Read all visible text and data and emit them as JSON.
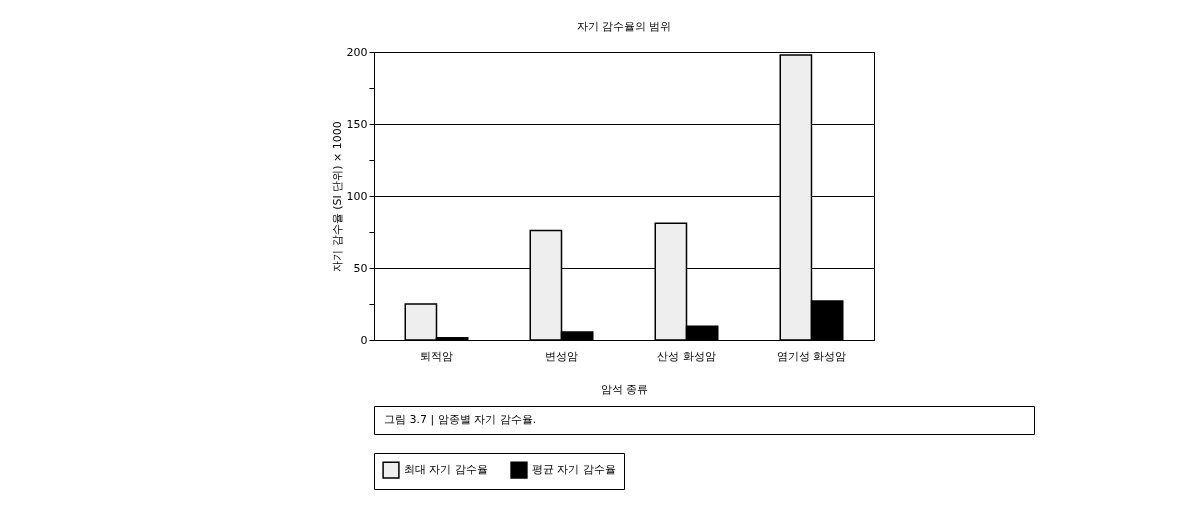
{
  "chart_data": {
    "type": "bar",
    "title": "자기 감수율의 범위",
    "xlabel": "암석 종류",
    "ylabel": "자기 감수율 (SI 단위) × 1000",
    "categories": [
      "퇴적암",
      "변성암",
      "산성 화성암",
      "염기성 화성암"
    ],
    "series": [
      {
        "name": "최대 자기 감수율",
        "color": "#eeeeee",
        "values": [
          25,
          76,
          81,
          198
        ]
      },
      {
        "name": "평균 자기 감수율",
        "color": "#000000",
        "values": [
          1.5,
          5.5,
          9.5,
          27
        ]
      }
    ],
    "ylim": [
      0,
      200
    ],
    "yticks": [
      0,
      {
        "value": 25,
        "label": null
      },
      50,
      {
        "value": 75,
        "label": null
      },
      100,
      {
        "value": 125,
        "label": null
      },
      150,
      {
        "value": 175,
        "label": null
      },
      200
    ],
    "grid": "y",
    "legend": "bottom",
    "annotations": [
      "그림 3.7 | 암종별 자기 감수율."
    ]
  }
}
